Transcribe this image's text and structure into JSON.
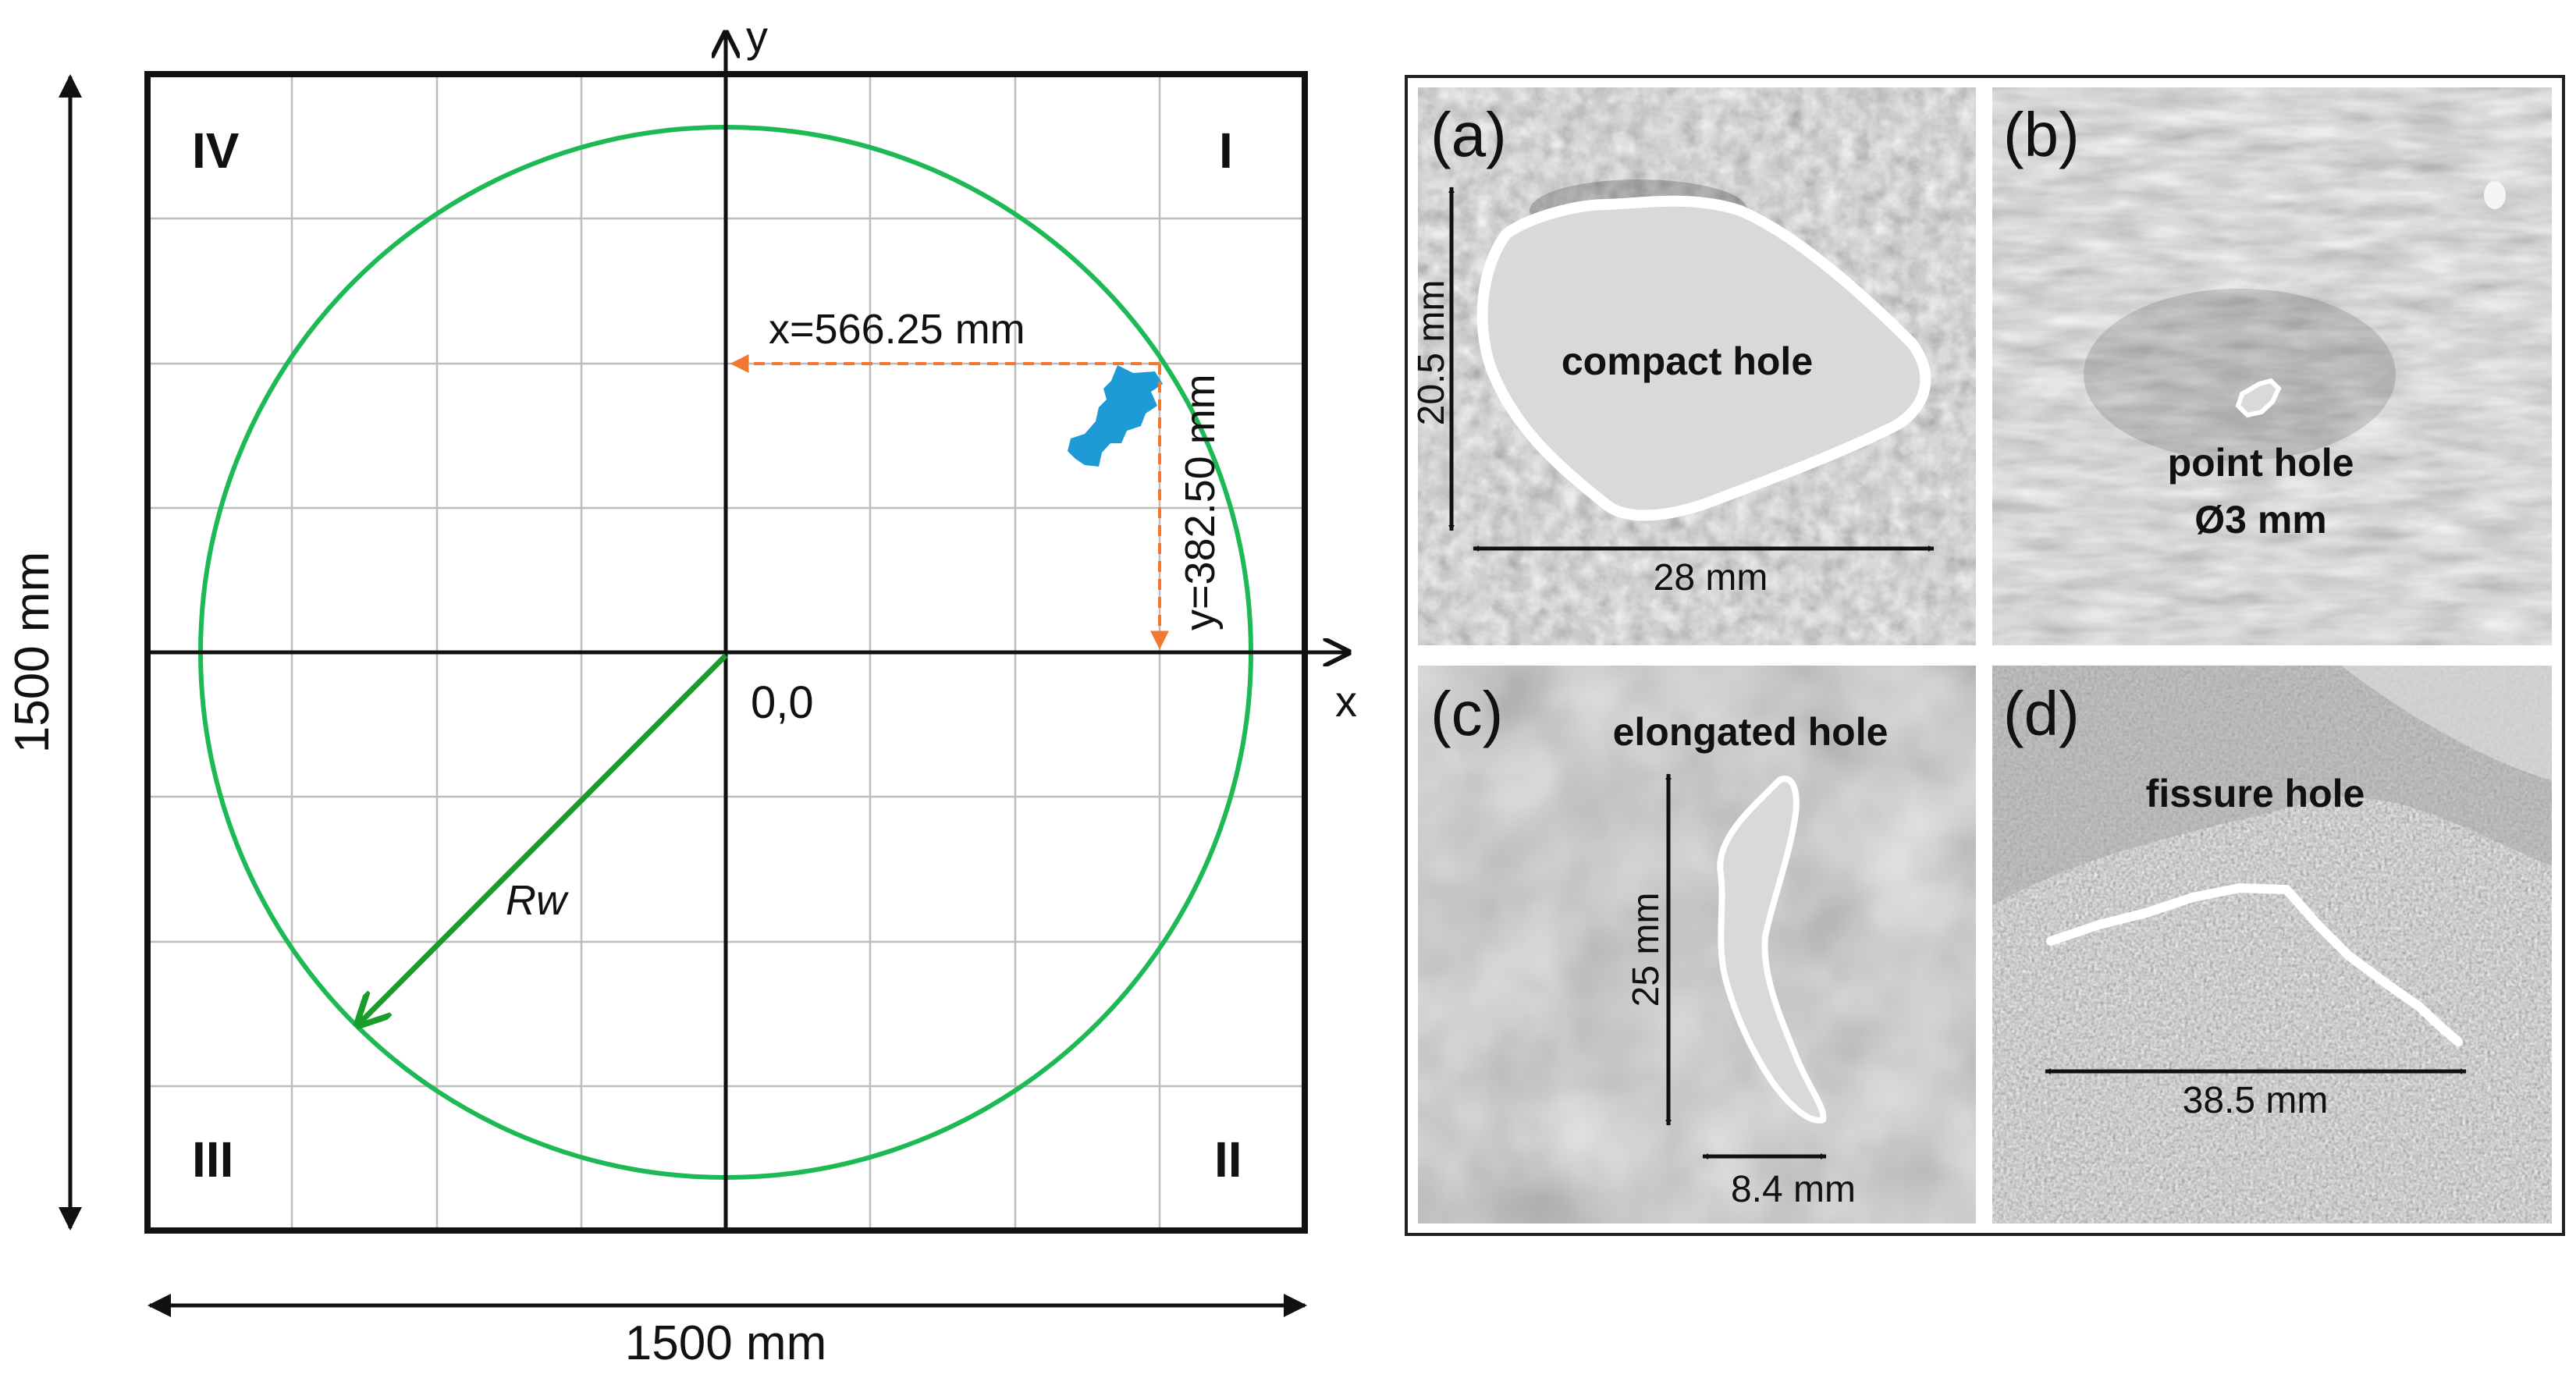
{
  "diagram": {
    "axes": {
      "x_label": "x",
      "y_label": "y",
      "origin_label": "0,0"
    },
    "dimensions": {
      "width_label": "1500 mm",
      "height_label": "1500 mm"
    },
    "quadrants": {
      "q1": "I",
      "q2": "II",
      "q3": "III",
      "q4": "IV"
    },
    "radius_label": "Rw",
    "hole_position": {
      "x_label": "x=566.25 mm",
      "y_label": "y=382.50 mm"
    },
    "colors": {
      "circle": "#1db954",
      "radius_arrow": "#1a9c2a",
      "hole": "#1e9bd7",
      "dim_arrows": "#f07830",
      "grid": "#bdbdbd"
    }
  },
  "panels": [
    {
      "id": "a",
      "tag": "(a)",
      "caption": "compact hole",
      "dim1": "20.5 mm",
      "dim2": "28 mm"
    },
    {
      "id": "b",
      "tag": "(b)",
      "caption": "point hole",
      "caption2": "Ø3 mm"
    },
    {
      "id": "c",
      "tag": "(c)",
      "caption": "elongated hole",
      "dim1": "25 mm",
      "dim2": "8.4 mm"
    },
    {
      "id": "d",
      "tag": "(d)",
      "caption": "fissure hole",
      "dim1": "38.5 mm"
    }
  ]
}
